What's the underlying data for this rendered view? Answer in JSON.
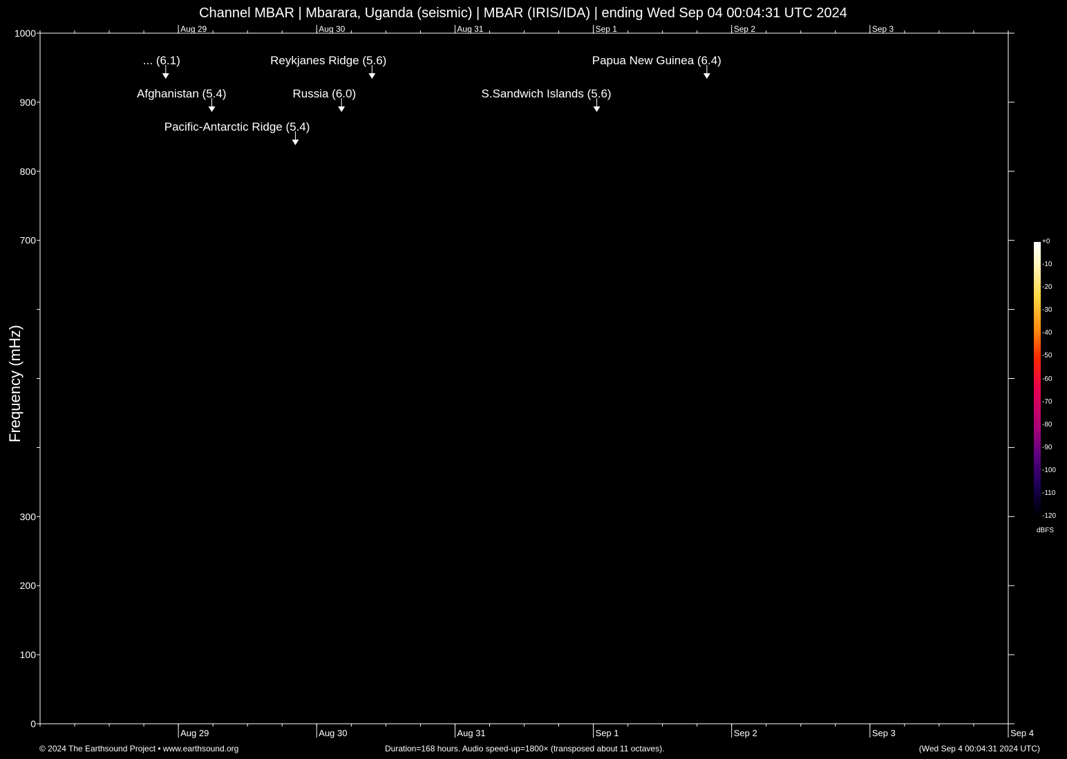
{
  "chart_data": {
    "type": "heatmap",
    "title": "Channel MBAR | Mbarara, Uganda (seismic) | MBAR (IRIS/IDA) | ending Wed Sep 04 00:04:31 UTC 2024",
    "ylabel": "Frequency (mHz)",
    "ylim": [
      0,
      1000
    ],
    "y_ticks": [
      {
        "value": 0,
        "label": "0"
      },
      {
        "value": 100,
        "label": "100"
      },
      {
        "value": 200,
        "label": "200"
      },
      {
        "value": 300,
        "label": "300"
      },
      {
        "value": 400,
        "label": ""
      },
      {
        "value": 500,
        "label": ""
      },
      {
        "value": 600,
        "label": ""
      },
      {
        "value": 700,
        "label": "700"
      },
      {
        "value": 800,
        "label": "800"
      },
      {
        "value": 900,
        "label": "900"
      },
      {
        "value": 1000,
        "label": "1000"
      }
    ],
    "duration_hours": 168,
    "x_day_ticks": [
      {
        "hour": 24,
        "label": "Aug 29"
      },
      {
        "hour": 48,
        "label": "Aug 30"
      },
      {
        "hour": 72,
        "label": "Aug 31"
      },
      {
        "hour": 96,
        "label": "Sep  1"
      },
      {
        "hour": 120,
        "label": "Sep  2"
      },
      {
        "hour": 144,
        "label": "Sep  3"
      },
      {
        "hour": 168,
        "label": "Sep  4"
      }
    ],
    "top_day_labels": [
      "Aug 29",
      "Aug 30",
      "Aug 31",
      "Sep  1",
      "Sep  2",
      "Sep  3"
    ],
    "events": [
      {
        "label": "... (6.1)",
        "hour": 21.8,
        "row": 1
      },
      {
        "label": "Reykjanes Ridge (5.6)",
        "hour": 57.6,
        "row": 1
      },
      {
        "label": "Papua New Guinea (6.4)",
        "hour": 115.7,
        "row": 1
      },
      {
        "label": "Afghanistan (5.4)",
        "hour": 29.8,
        "row": 2
      },
      {
        "label": "Russia (6.0)",
        "hour": 52.3,
        "row": 2
      },
      {
        "label": "S.Sandwich Islands (5.6)",
        "hour": 96.6,
        "row": 2
      },
      {
        "label": "Pacific-Antarctic Ridge (5.4)",
        "hour": 44.3,
        "row": 3
      }
    ],
    "colorbar": {
      "unit": "dBFS",
      "ticks": [
        "+0",
        "-10",
        "-20",
        "-30",
        "-40",
        "-50",
        "-60",
        "-70",
        "-80",
        "-90",
        "-100",
        "-110",
        "-120"
      ]
    }
  },
  "footer": {
    "copyright": "© 2024 The Earthsound Project • www.earthsound.org",
    "info": "Duration=168 hours. Audio speed-up=1800× (transposed about 11 octaves).",
    "timestamp": "(Wed Sep  4 00:04:31 2024 UTC)"
  }
}
